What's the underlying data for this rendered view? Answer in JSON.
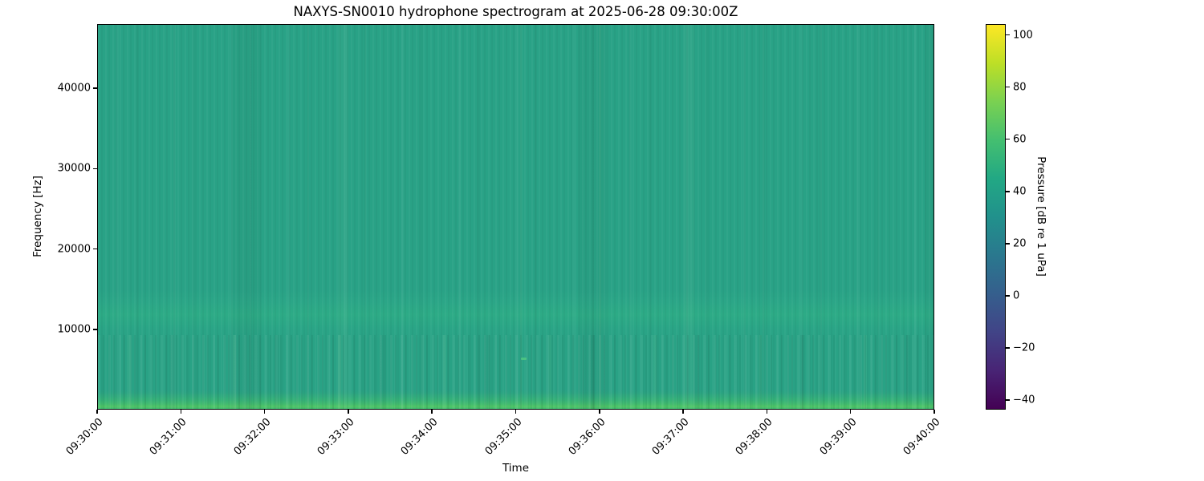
{
  "figure": {
    "title": "NAXYS-SN0010 hydrophone spectrogram at 2025-06-28 09:30:00Z",
    "xlabel": "Time",
    "ylabel": "Frequency [Hz]",
    "colorbar_label": "Pressure [dB re 1 uPa]"
  },
  "chart_data": {
    "type": "heatmap",
    "title": "NAXYS-SN0010 hydrophone spectrogram at 2025-06-28 09:30:00Z",
    "xlabel": "Time",
    "ylabel": "Frequency [Hz]",
    "x_ticks": [
      "09:30:00",
      "09:31:00",
      "09:32:00",
      "09:33:00",
      "09:34:00",
      "09:35:00",
      "09:36:00",
      "09:37:00",
      "09:38:00",
      "09:39:00",
      "09:40:00"
    ],
    "x_tick_interval_seconds": 60,
    "xlim": [
      "09:30:00",
      "09:40:00"
    ],
    "y_ticks": [
      10000,
      20000,
      30000,
      40000
    ],
    "y_tick_labels": [
      "10000",
      "20000",
      "30000",
      "40000"
    ],
    "ylim": [
      0,
      48000
    ],
    "grid": false,
    "legend": "none",
    "colormap": "viridis",
    "colormap_stops": [
      "#440154",
      "#482475",
      "#414487",
      "#355f8d",
      "#2a788e",
      "#21918c",
      "#22a884",
      "#44bf70",
      "#7ad151",
      "#bddf26",
      "#fde725"
    ],
    "colorbar": {
      "label": "Pressure [dB re 1 uPa]",
      "tick_values": [
        100,
        80,
        60,
        40,
        20,
        0,
        -20,
        -40
      ],
      "tick_labels": [
        "100",
        "80",
        "60",
        "40",
        "20",
        "0",
        "−20",
        "−40"
      ],
      "vmin": -43.7,
      "vmax": 104.2,
      "position": "right"
    },
    "values_summary": {
      "background_level_db": 50,
      "band_near_10000hz_db": 53,
      "low_frequency_band_below_2000hz_db": 62,
      "lowest_bin_peak_db": 72,
      "transient": "faint broadband dash near 09:35:05 at ~6.4 kHz",
      "texture": "near-uniform ambient noise with faint vertical per-column striations; brightest levels confined to the lowest frequency bins",
      "background_color": "#2aa386",
      "lowfreq_line_color": "#4cc167"
    }
  }
}
